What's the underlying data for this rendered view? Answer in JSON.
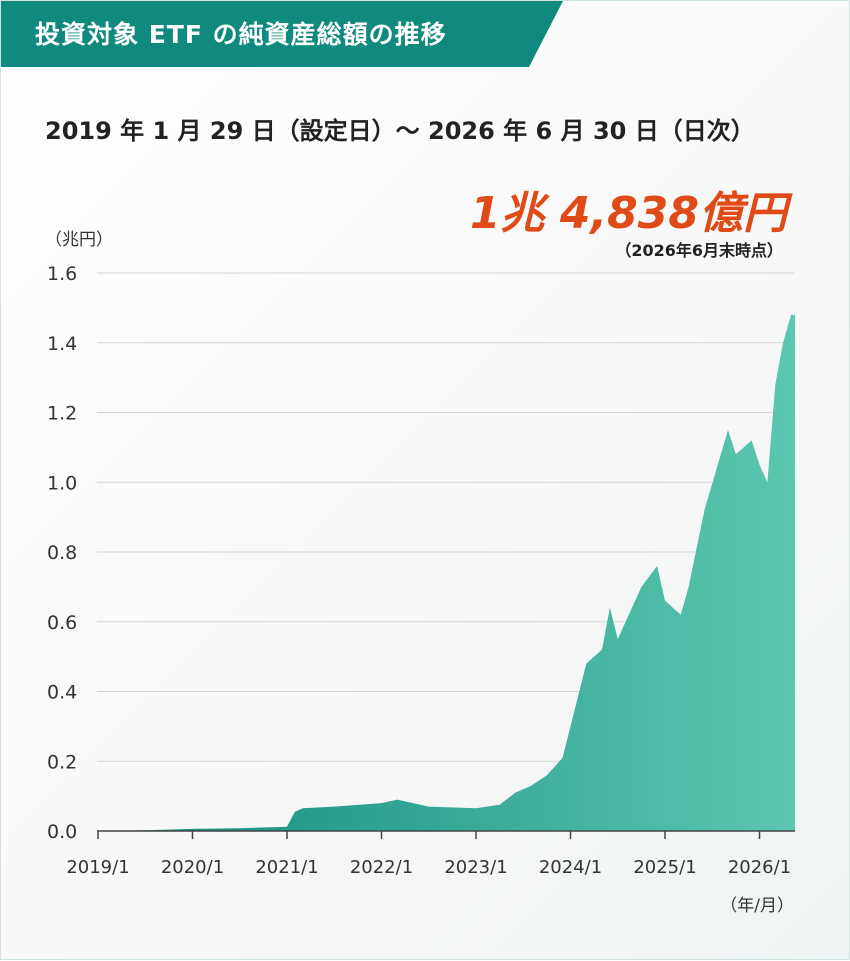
{
  "title": "投資対象 ETF の純資産総額の推移",
  "period": "2019 年 1 月 29 日（設定日）〜 2026 年 6 月 30 日（日次）",
  "highlight": {
    "value": "1兆 4,838億円",
    "note": "（2026年6月末時点）"
  },
  "colors": {
    "title_bg": "#108a7e",
    "area_start": "#0f8a7a",
    "area_end": "#5cc7b0",
    "highlight": "#e04a17"
  },
  "chart_data": {
    "type": "area",
    "ylabel": "（兆円）",
    "xlabel": "（年/月）",
    "ylim": [
      0,
      1.6
    ],
    "y_ticks": [
      "0.0",
      "0.2",
      "0.4",
      "0.6",
      "0.8",
      "1.0",
      "1.2",
      "1.4",
      "1.6"
    ],
    "x_ticks": [
      "2019/1",
      "2020/1",
      "2021/1",
      "2022/1",
      "2023/1",
      "2024/1",
      "2025/1",
      "2026/1"
    ],
    "grid": true,
    "x": [
      "2019/1",
      "2019/7",
      "2020/1",
      "2020/7",
      "2021/1",
      "2021/2",
      "2021/3",
      "2021/7",
      "2022/1",
      "2022/3",
      "2022/7",
      "2023/1",
      "2023/4",
      "2023/6",
      "2023/8",
      "2023/10",
      "2023/12",
      "2024/1",
      "2024/3",
      "2024/5",
      "2024/6",
      "2024/7",
      "2024/8",
      "2024/10",
      "2024/12",
      "2025/1",
      "2025/3",
      "2025/4",
      "2025/6",
      "2025/9",
      "2025/10",
      "2025/12",
      "2026/1",
      "2026/2",
      "2026/3",
      "2026/4",
      "2026/5",
      "2026/6"
    ],
    "values": [
      0.0,
      0.002,
      0.006,
      0.008,
      0.012,
      0.055,
      0.065,
      0.07,
      0.08,
      0.09,
      0.07,
      0.065,
      0.075,
      0.11,
      0.13,
      0.16,
      0.21,
      0.3,
      0.48,
      0.52,
      0.64,
      0.55,
      0.6,
      0.7,
      0.76,
      0.66,
      0.62,
      0.7,
      0.92,
      1.15,
      1.08,
      1.12,
      1.05,
      1.0,
      1.28,
      1.4,
      1.48,
      1.48
    ]
  }
}
